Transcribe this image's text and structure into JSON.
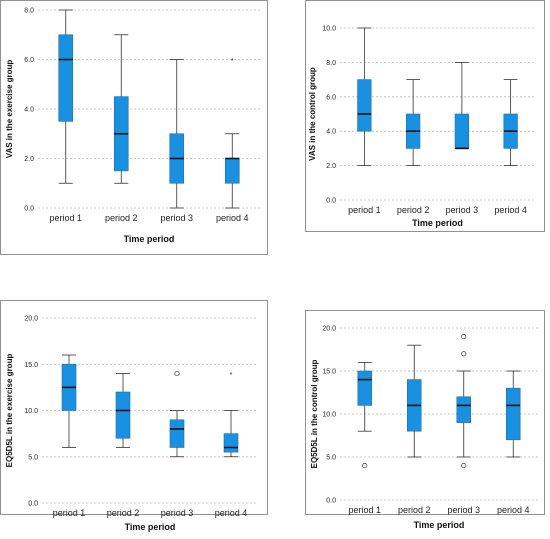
{
  "colors": {
    "box_fill": "#1a90e0",
    "box_stroke": "#1a6fb0",
    "median": "#111111",
    "whisker": "#333333",
    "grid": "#b8b8b8",
    "frame": "#777777"
  },
  "chart_data": [
    {
      "type": "box",
      "xlabel": "Time period",
      "ylabel": "VAS in the exercise group",
      "categories": [
        "period 1",
        "period 2",
        "period 3",
        "period 4"
      ],
      "ylim": [
        0,
        8
      ],
      "yticks": [
        "0.0",
        "2.0",
        "4.0",
        "6.0",
        "8.0"
      ],
      "ytick_values": [
        0,
        2,
        4,
        6,
        8
      ],
      "grid": true,
      "boxes": [
        {
          "min": 1,
          "q1": 3.5,
          "median": 6,
          "q3": 7,
          "max": 8,
          "outliers": [],
          "extremes": []
        },
        {
          "min": 1,
          "q1": 1.5,
          "median": 3,
          "q3": 4.5,
          "max": 7,
          "outliers": [],
          "extremes": []
        },
        {
          "min": 0,
          "q1": 1,
          "median": 2,
          "q3": 3,
          "max": 6,
          "outliers": [],
          "extremes": []
        },
        {
          "min": 0,
          "q1": 1,
          "median": 2,
          "q3": 2,
          "max": 3,
          "outliers": [],
          "extremes": [
            6
          ]
        }
      ]
    },
    {
      "type": "box",
      "xlabel": "Time period",
      "ylabel": "VAS in the control group",
      "categories": [
        "period 1",
        "period 2",
        "period 3",
        "period 4"
      ],
      "ylim": [
        0,
        10
      ],
      "yticks": [
        "0.0",
        "2.0",
        "4.0",
        "6.0",
        "8.0",
        "10.0"
      ],
      "ytick_values": [
        0,
        2,
        4,
        6,
        8,
        10
      ],
      "grid": true,
      "boxes": [
        {
          "min": 2,
          "q1": 4,
          "median": 5,
          "q3": 7,
          "max": 10,
          "outliers": [],
          "extremes": []
        },
        {
          "min": 2,
          "q1": 3,
          "median": 4,
          "q3": 5,
          "max": 7,
          "outliers": [],
          "extremes": []
        },
        {
          "min": 3,
          "q1": 3,
          "median": 3,
          "q3": 5,
          "max": 8,
          "outliers": [],
          "extremes": []
        },
        {
          "min": 2,
          "q1": 3,
          "median": 4,
          "q3": 5,
          "max": 7,
          "outliers": [],
          "extremes": []
        }
      ]
    },
    {
      "type": "box",
      "xlabel": "Time period",
      "ylabel": "EQ5D5L in the exercise group",
      "categories": [
        "period 1",
        "period 2",
        "period 3",
        "period 4"
      ],
      "ylim": [
        0,
        20
      ],
      "yticks": [
        "0.0",
        "5.0",
        "10.0",
        "15.0",
        "20.0"
      ],
      "ytick_values": [
        0,
        5,
        10,
        15,
        20
      ],
      "grid": true,
      "boxes": [
        {
          "min": 6,
          "q1": 10,
          "median": 12.5,
          "q3": 15,
          "max": 16,
          "outliers": [],
          "extremes": []
        },
        {
          "min": 6,
          "q1": 7,
          "median": 10,
          "q3": 12,
          "max": 14,
          "outliers": [],
          "extremes": []
        },
        {
          "min": 5,
          "q1": 6,
          "median": 8,
          "q3": 9,
          "max": 10,
          "outliers": [
            14
          ],
          "extremes": []
        },
        {
          "min": 5,
          "q1": 5.5,
          "median": 6,
          "q3": 7.5,
          "max": 10,
          "outliers": [],
          "extremes": [
            14
          ]
        }
      ]
    },
    {
      "type": "box",
      "xlabel": "Time period",
      "ylabel": "EQ5D5L in the control group",
      "categories": [
        "period 1",
        "period 2",
        "period 3",
        "period 4"
      ],
      "ylim": [
        0,
        20
      ],
      "yticks": [
        "0.0",
        "5.0",
        "10.0",
        "15.0",
        "20.0"
      ],
      "ytick_values": [
        0,
        5,
        10,
        15,
        20
      ],
      "grid": true,
      "boxes": [
        {
          "min": 8,
          "q1": 11,
          "median": 14,
          "q3": 15,
          "max": 16,
          "outliers": [
            4
          ],
          "extremes": []
        },
        {
          "min": 5,
          "q1": 8,
          "median": 11,
          "q3": 14,
          "max": 18,
          "outliers": [],
          "extremes": []
        },
        {
          "min": 5,
          "q1": 9,
          "median": 11,
          "q3": 12,
          "max": 15,
          "outliers": [
            4,
            17,
            19
          ],
          "extremes": []
        },
        {
          "min": 5,
          "q1": 7,
          "median": 11,
          "q3": 13,
          "max": 15,
          "outliers": [],
          "extremes": []
        }
      ]
    }
  ]
}
